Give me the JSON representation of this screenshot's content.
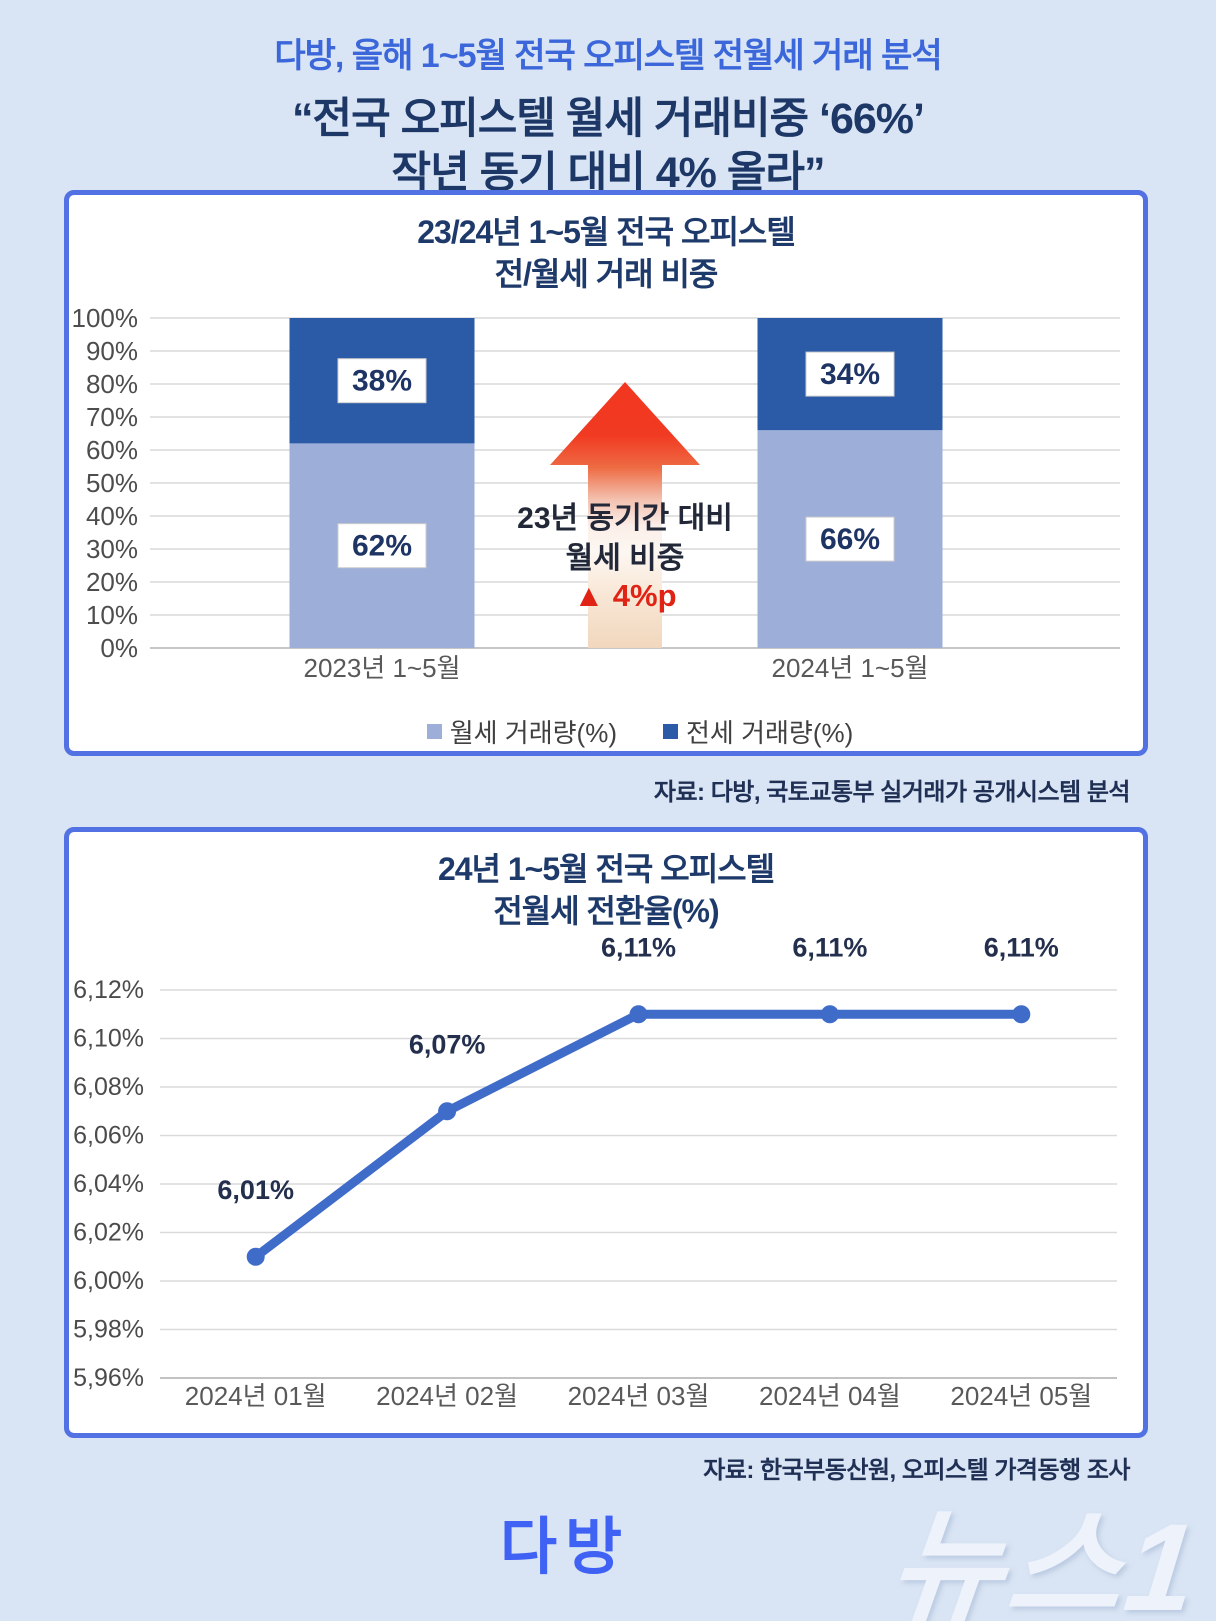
{
  "header": {
    "line1": "다방, 올해 1~5월 전국 오피스텔 전월세 거래 분석",
    "line2": "“전국 오피스텔 월세 거래비중 ‘66%’",
    "line3": "작년 동기 대비 4% 올라”"
  },
  "chart1": {
    "title1": "23/24년 1~5월 전국 오피스텔",
    "title2": "전/월세 거래 비중",
    "annotation1": "23년 동기간 대비",
    "annotation2": "월세 비중",
    "annotation3": "▲ 4%p",
    "source": "자료: 다방, 국토교통부 실거래가 공개시스템 분석"
  },
  "chart2": {
    "title1": "24년 1~5월 전국 오피스텔",
    "title2": "전월세 전환율(%)",
    "source": "자료: 한국부동산원, 오피스텔 가격동행 조사"
  },
  "footer": {
    "brand": "다방",
    "watermark": "뉴스1"
  },
  "colors": {
    "page_background": "#d9e5f4",
    "panel_border": "#5272e3",
    "header_blue": "#3c67da",
    "navy": "#1d3767",
    "arrow_red": "#f23620",
    "delta_red": "#e02314"
  },
  "chart_data": [
    {
      "type": "bar",
      "stacked": true,
      "title": "23/24년 1~5월 전국 오피스텔 전/월세 거래 비중",
      "categories": [
        "2023년 1~5월",
        "2024년 1~5월"
      ],
      "series": [
        {
          "name": "월세 거래량(%)",
          "values": [
            62,
            66
          ],
          "labels": [
            "62%",
            "66%"
          ],
          "color": "#9daed9"
        },
        {
          "name": "전세 거래량(%)",
          "values": [
            38,
            34
          ],
          "labels": [
            "38%",
            "34%"
          ],
          "color": "#2b5aa7"
        }
      ],
      "yticks": [
        "100%",
        "90%",
        "80%",
        "70%",
        "60%",
        "50%",
        "40%",
        "30%",
        "20%",
        "10%",
        "0%"
      ],
      "ylim": [
        0,
        100
      ],
      "legend_position": "bottom",
      "annotation": "23년 동기간 대비 월세 비중 ▲ 4%p"
    },
    {
      "type": "line",
      "title": "24년 1~5월 전국 오피스텔 전월세 전환율(%)",
      "x": [
        "2024년 01월",
        "2024년 02월",
        "2024년 03월",
        "2024년 04월",
        "2024년 05월"
      ],
      "values": [
        6.01,
        6.07,
        6.11,
        6.11,
        6.11
      ],
      "point_labels": [
        "6,01%",
        "6,07%",
        "6,11%",
        "6,11%",
        "6,11%"
      ],
      "yticks": [
        "6,12%",
        "6,10%",
        "6,08%",
        "6,06%",
        "6,04%",
        "6,02%",
        "6,00%",
        "5,98%",
        "5,96%"
      ],
      "ylim": [
        5.96,
        6.13
      ],
      "line_color": "#3f6bc9",
      "grid": true,
      "legend_position": "none"
    }
  ]
}
